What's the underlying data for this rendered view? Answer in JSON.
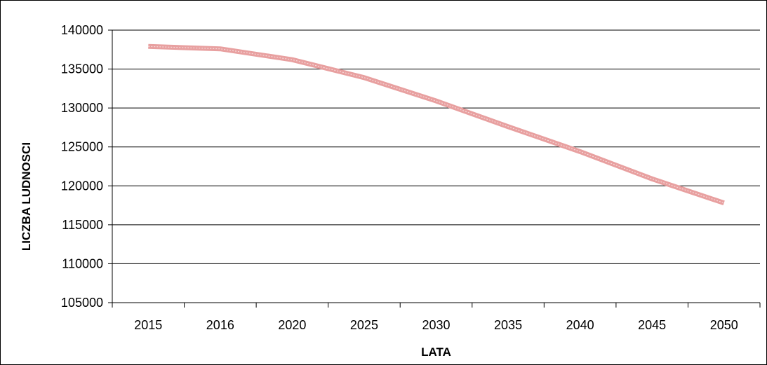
{
  "chart_data": {
    "type": "line",
    "title": "",
    "xlabel": "LATA",
    "ylabel": "LICZBA LUDNOSCI",
    "categories": [
      "2015",
      "2016",
      "2020",
      "2025",
      "2030",
      "2035",
      "2040",
      "2045",
      "2050"
    ],
    "series": [
      {
        "values": [
          137900,
          137600,
          136200,
          133900,
          130900,
          127600,
          124400,
          120900,
          117800
        ]
      }
    ],
    "ylim": [
      105000,
      140000
    ],
    "yticks": [
      "105000",
      "110000",
      "115000",
      "120000",
      "125000",
      "130000",
      "135000",
      "140000"
    ],
    "grid": "horizontal",
    "legend": "none",
    "colors": {
      "line": "#e8a0a0",
      "grid": "#000000",
      "axis": "#000000"
    }
  }
}
